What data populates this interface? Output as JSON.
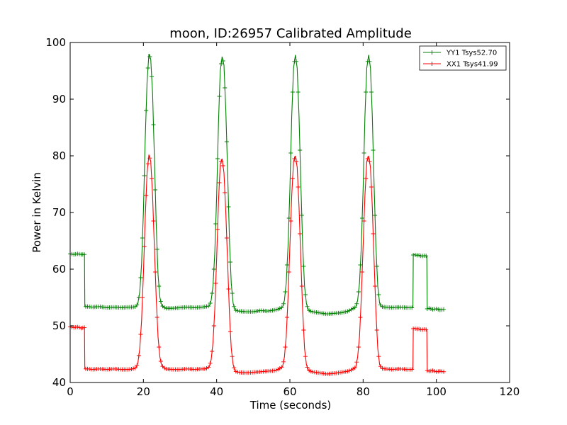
{
  "chart_data": {
    "type": "line",
    "title": "moon, ID:26957 Calibrated Amplitude",
    "xlabel": "Time (seconds)",
    "ylabel": "Power in Kelvin",
    "xlim": [
      0,
      120
    ],
    "ylim": [
      40,
      100
    ],
    "xticks": [
      0,
      20,
      40,
      60,
      80,
      100,
      120
    ],
    "yticks": [
      40,
      50,
      60,
      70,
      80,
      90,
      100
    ],
    "grid": false,
    "legend_position": "top-right",
    "marker": "+",
    "series": [
      {
        "name": "YY1 Tsys52.70",
        "color": "#008000",
        "x": [
          0,
          1,
          2,
          3,
          3.9,
          4,
          5,
          6,
          8,
          10,
          12,
          14,
          16,
          17,
          18,
          18.5,
          19,
          19.5,
          20,
          20.5,
          21,
          21.5,
          22,
          22.5,
          23,
          23.5,
          24,
          24.5,
          25,
          26,
          28,
          30,
          32,
          34,
          36,
          37,
          38,
          38.5,
          39,
          39.5,
          40,
          40.5,
          41,
          41.5,
          42,
          42.5,
          43,
          43.5,
          44,
          44.5,
          45,
          46,
          48,
          50,
          52,
          54,
          56,
          57,
          58,
          58.5,
          59,
          59.5,
          60,
          60.5,
          61,
          61.5,
          62,
          62.5,
          63,
          63.5,
          64,
          64.5,
          65,
          66,
          68,
          70,
          72,
          74,
          76,
          77,
          78,
          78.5,
          79,
          79.5,
          80,
          80.5,
          81,
          81.5,
          82,
          82.5,
          83,
          83.5,
          84,
          84.5,
          85,
          86,
          88,
          90,
          92,
          93.6,
          93.7,
          94,
          94.5,
          95,
          96,
          97,
          97.4,
          97.5,
          98,
          99,
          100,
          101,
          102
        ],
        "y": [
          62.7,
          62.6,
          62.7,
          62.6,
          62.6,
          53.4,
          53.4,
          53.3,
          53.4,
          53.2,
          53.3,
          53.2,
          53.3,
          53.3,
          53.4,
          54,
          56,
          61,
          70,
          83,
          93,
          98,
          97,
          91,
          80,
          68,
          59,
          55,
          53.6,
          53.1,
          53.1,
          53.2,
          53.3,
          53.2,
          53.3,
          53.4,
          53.5,
          54.5,
          57,
          63,
          73,
          86,
          95,
          97.5,
          96,
          88,
          77,
          65,
          57.5,
          54,
          52.8,
          52.6,
          52.5,
          52.5,
          52.7,
          52.6,
          52.8,
          53,
          53.3,
          54.5,
          57.5,
          64,
          74,
          87,
          95.5,
          97.8,
          95.5,
          87,
          75,
          64,
          57,
          54,
          52.8,
          52.5,
          52.3,
          52.1,
          52.2,
          52.3,
          52.6,
          53,
          53.3,
          54.5,
          57.5,
          64,
          74,
          87,
          95.5,
          97.8,
          95.5,
          87,
          75,
          64,
          57,
          54,
          53.4,
          53.3,
          53.2,
          53.3,
          53.2,
          53.2,
          62.5,
          62.6,
          62.4,
          62.5,
          62.3,
          62.4,
          62.3,
          53,
          53.1,
          52.9,
          53,
          52.8,
          52.9
        ]
      },
      {
        "name": "XX1 Tsys41.99",
        "color": "#ff0000",
        "x": [
          0,
          1,
          2,
          3,
          3.9,
          4,
          5,
          6,
          8,
          10,
          12,
          14,
          16,
          17,
          18,
          18.5,
          19,
          19.5,
          20,
          20.5,
          21,
          21.5,
          22,
          22.5,
          23,
          23.5,
          24,
          24.5,
          25,
          26,
          28,
          30,
          32,
          34,
          36,
          37,
          38,
          38.5,
          39,
          39.5,
          40,
          40.5,
          41,
          41.5,
          42,
          42.5,
          43,
          43.5,
          44,
          44.5,
          45,
          46,
          48,
          50,
          52,
          54,
          56,
          57,
          58,
          58.5,
          59,
          59.5,
          60,
          60.5,
          61,
          61.5,
          62,
          62.5,
          63,
          63.5,
          64,
          64.5,
          65,
          66,
          68,
          70,
          72,
          74,
          76,
          77,
          78,
          78.5,
          79,
          79.5,
          80,
          80.5,
          81,
          81.5,
          82,
          82.5,
          83,
          83.5,
          84,
          84.5,
          85,
          86,
          88,
          90,
          92,
          93.6,
          93.7,
          94,
          94.5,
          95,
          96,
          97,
          97.4,
          97.5,
          98,
          99,
          100,
          101,
          102
        ],
        "y": [
          49.8,
          49.7,
          49.8,
          49.6,
          49.7,
          42.4,
          42.4,
          42.3,
          42.4,
          42.3,
          42.4,
          42.3,
          42.3,
          42.4,
          42.6,
          43.5,
          46,
          51,
          59,
          69,
          77,
          80.2,
          79,
          73,
          64,
          55,
          48,
          44.5,
          43,
          42.4,
          42.3,
          42.3,
          42.4,
          42.3,
          42.4,
          42.4,
          42.8,
          44,
          47,
          53,
          62,
          72,
          78.5,
          79.5,
          77,
          70,
          61,
          52,
          46,
          43.2,
          42,
          41.8,
          41.7,
          41.8,
          41.9,
          42,
          42.1,
          42.4,
          42.8,
          44.5,
          48,
          55,
          64,
          73,
          79,
          80,
          78,
          71,
          61.5,
          52.5,
          46,
          43.2,
          42.2,
          41.9,
          41.7,
          41.5,
          41.6,
          41.8,
          42,
          42.3,
          42.7,
          44.5,
          48,
          55,
          64,
          73,
          79,
          80,
          78,
          71,
          61.5,
          52.5,
          46,
          43.2,
          42.5,
          42.4,
          42.3,
          42.4,
          42.3,
          42.3,
          49.5,
          49.6,
          49.4,
          49.5,
          49.3,
          49.4,
          49.3,
          42.1,
          42,
          42.1,
          41.9,
          42,
          41.9
        ]
      }
    ]
  }
}
